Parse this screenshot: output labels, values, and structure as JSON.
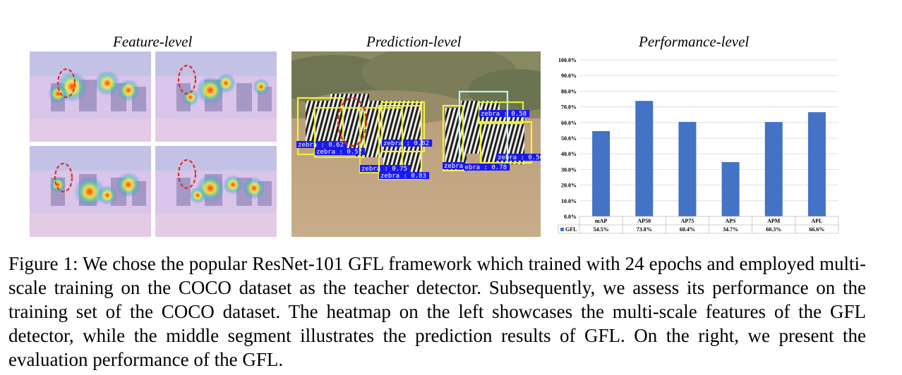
{
  "panels": {
    "feature_title": "Feature-level",
    "prediction_title": "Prediction-level",
    "performance_title": "Performance-level"
  },
  "detections": [
    {
      "label": "zebra : 0.62"
    },
    {
      "label": "zebra : 0.57"
    },
    {
      "label": "zebra : 0.82"
    },
    {
      "label": "zebra : 0.75"
    },
    {
      "label": "zebra : 0.83"
    },
    {
      "label": "zebra : 0.58"
    },
    {
      "label": "zebra : 0.50"
    },
    {
      "label": "zebra : 0.78"
    },
    {
      "label": "zebra"
    }
  ],
  "chart_data": {
    "type": "bar",
    "categories": [
      "mAP",
      "AP50",
      "AP75",
      "APS",
      "APM",
      "APL"
    ],
    "series": [
      {
        "name": "GFL",
        "values": [
          54.5,
          73.8,
          60.4,
          34.7,
          60.3,
          66.6
        ],
        "color": "#4472C4"
      }
    ],
    "value_labels": [
      "54.5%",
      "73.8%",
      "60.4%",
      "34.7%",
      "60.3%",
      "66.6%"
    ],
    "yticks": [
      "0.0%",
      "10.0%",
      "20.0%",
      "30.0%",
      "40.0%",
      "50.0%",
      "60.0%",
      "70.0%",
      "80.0%",
      "90.0%",
      "100.0%"
    ],
    "ylim": [
      0,
      100
    ],
    "grid": true,
    "legend": "data-table-below"
  },
  "caption": "Figure 1: We chose the popular ResNet-101 GFL framework which trained with 24 epochs and employed multi-scale training on the COCO dataset as the teacher detector. Subsequently, we assess its performance on the training set of the COCO dataset. The heatmap on the left showcases the multi-scale features of the GFL detector, while the middle segment illustrates the prediction results of GFL. On the right, we present the evaluation performance of the GFL."
}
